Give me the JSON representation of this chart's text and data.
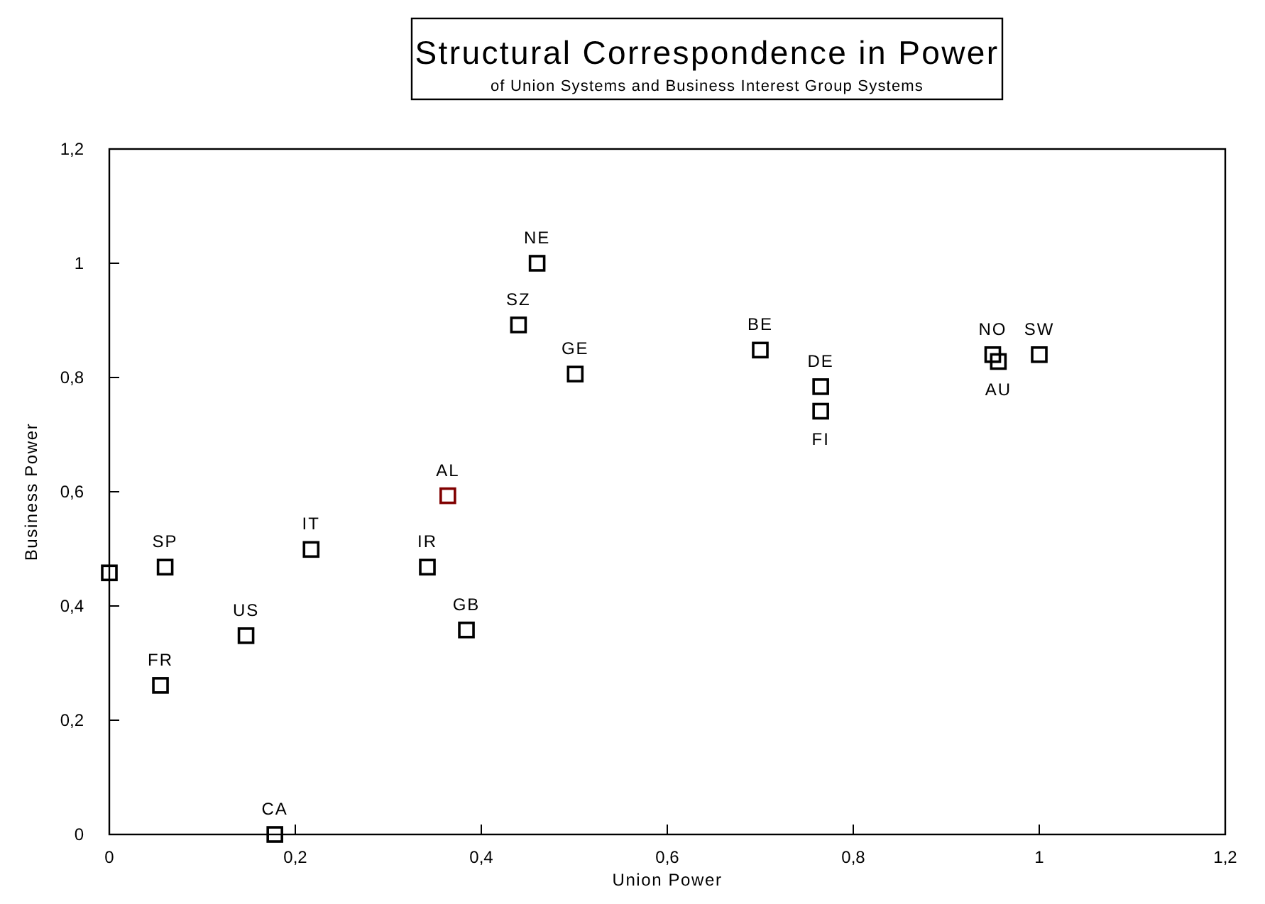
{
  "chart_data": {
    "type": "scatter",
    "title": "Structural Correspondence in Power",
    "subtitle": "of Union Systems and Business Interest Group Systems",
    "xlabel": "Union Power",
    "ylabel": "Business Power",
    "x": [
      0,
      0.06,
      0.055,
      0.147,
      0.178,
      0.217,
      0.364,
      0.342,
      0.384,
      0.44,
      0.46,
      0.501,
      0.7,
      0.765,
      0.765,
      0.95,
      0.956,
      1.0
    ],
    "values": [
      0.458,
      0.468,
      0.261,
      0.348,
      0,
      0.499,
      0.593,
      0.468,
      0.358,
      0.892,
      1.0,
      0.806,
      0.848,
      0.784,
      0.741,
      0.84,
      0.828,
      0.84
    ],
    "value_labels": [
      null,
      "SP",
      "FR",
      "US",
      "CA",
      "IT",
      "AL",
      "IR",
      "GB",
      "SZ",
      "NE",
      "GE",
      "BE",
      "DE",
      "FI",
      "NO",
      "AU",
      "SW"
    ],
    "colors": [
      "#000000",
      "#000000",
      "#000000",
      "#000000",
      "#000000",
      "#000000",
      "#800000",
      "#000000",
      "#000000",
      "#000000",
      "#000000",
      "#000000",
      "#000000",
      "#000000",
      "#000000",
      "#000000",
      "#000000",
      "#000000"
    ],
    "marker": "square",
    "grid": false,
    "xlim": [
      0,
      1.2
    ],
    "xticks": [
      0,
      {
        "value": 0.2,
        "label": "0,2"
      },
      {
        "value": 0.4,
        "label": "0,4"
      },
      {
        "value": 0.6,
        "label": "0,6"
      },
      {
        "value": 0.8,
        "label": "0,8"
      },
      1,
      {
        "value": 1.2,
        "label": "1,2"
      }
    ],
    "ylim": [
      0,
      1.2
    ],
    "yticks": [
      0,
      {
        "value": 0.2,
        "label": "0,2"
      },
      {
        "value": 0.4,
        "label": "0,4"
      },
      {
        "value": 0.6,
        "label": "0,6"
      },
      {
        "value": 0.8,
        "label": "0,8"
      },
      1,
      {
        "value": 1.2,
        "label": "1,2"
      }
    ]
  }
}
